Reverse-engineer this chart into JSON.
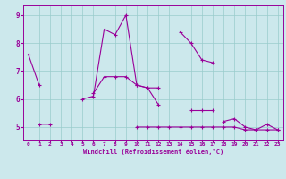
{
  "xlabel": "Windchill (Refroidissement éolien,°C)",
  "background_color": "#cce8ec",
  "line_color": "#990099",
  "grid_color": "#99cccc",
  "x_ticks": [
    0,
    1,
    2,
    3,
    4,
    5,
    6,
    7,
    8,
    9,
    10,
    11,
    12,
    13,
    14,
    15,
    16,
    17,
    18,
    19,
    20,
    21,
    22,
    23
  ],
  "y_ticks": [
    5,
    6,
    7,
    8,
    9
  ],
  "ylim": [
    4.55,
    9.35
  ],
  "xlim": [
    -0.5,
    23.5
  ],
  "series": [
    [
      7.6,
      6.5,
      null,
      null,
      null,
      6.0,
      6.1,
      8.5,
      8.3,
      9.0,
      6.5,
      6.4,
      5.8,
      null,
      8.4,
      8.0,
      7.4,
      7.3,
      null,
      null,
      null,
      null,
      null,
      null
    ],
    [
      null,
      null,
      null,
      null,
      null,
      null,
      6.2,
      6.8,
      6.8,
      6.8,
      6.5,
      6.4,
      6.4,
      null,
      null,
      null,
      null,
      null,
      null,
      null,
      null,
      null,
      null,
      null
    ],
    [
      null,
      null,
      null,
      null,
      null,
      null,
      null,
      null,
      null,
      null,
      null,
      null,
      null,
      null,
      null,
      5.6,
      5.6,
      5.6,
      null,
      null,
      null,
      null,
      null,
      null
    ],
    [
      null,
      5.1,
      5.1,
      null,
      null,
      null,
      null,
      null,
      null,
      null,
      5.0,
      5.0,
      5.0,
      5.0,
      5.0,
      5.0,
      5.0,
      5.0,
      5.0,
      5.0,
      4.9,
      4.9,
      5.1,
      4.9
    ],
    [
      null,
      null,
      null,
      null,
      null,
      null,
      null,
      null,
      null,
      null,
      null,
      null,
      null,
      null,
      null,
      null,
      null,
      null,
      5.2,
      5.3,
      5.0,
      4.9,
      4.9,
      4.9
    ]
  ]
}
